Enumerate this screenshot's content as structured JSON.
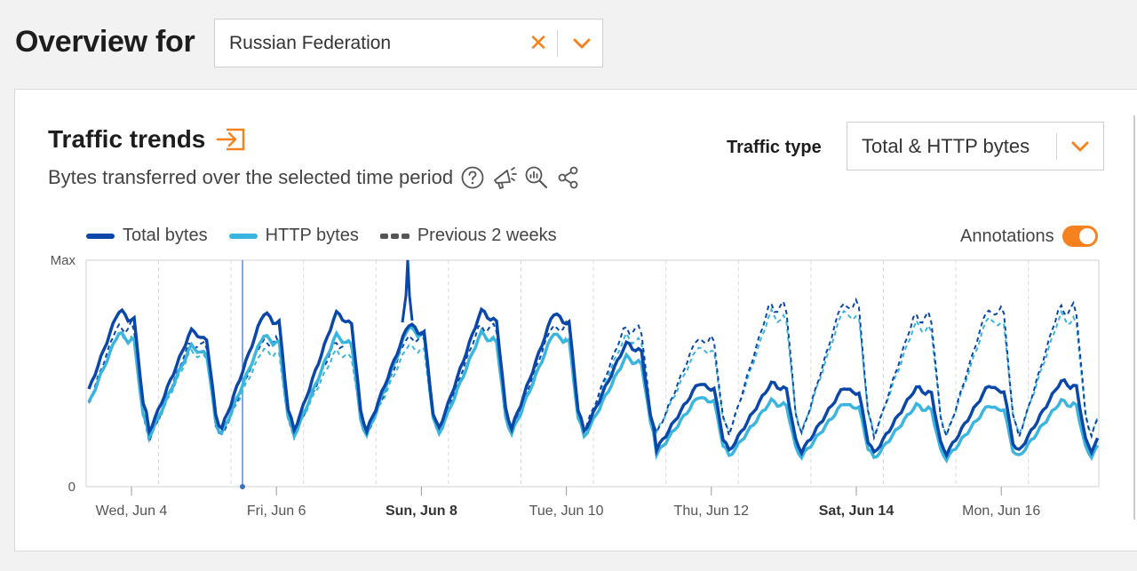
{
  "header": {
    "title": "Overview for",
    "location_value": "Russian Federation",
    "clear_glyph": "✕"
  },
  "card": {
    "title": "Traffic trends",
    "subtitle": "Bytes transferred over the selected time period",
    "traffic_type_label": "Traffic type",
    "traffic_type_value": "Total & HTTP bytes",
    "annotations_label": "Annotations",
    "annotations_on": true
  },
  "icons": [
    "expand-icon",
    "help-icon",
    "megaphone-icon",
    "zoom-chart-icon",
    "share-icon",
    "chevron-down-icon",
    "close-icon"
  ],
  "colors": {
    "accent": "#f6821f",
    "total": "#0a47a8",
    "http": "#3ab5dd",
    "previous": "#555555"
  },
  "chart_data": {
    "type": "line",
    "ylabel_top": "Max",
    "ylabel_bottom": "0",
    "x_ticks": [
      {
        "label": "Wed, Jun 4",
        "bold": false
      },
      {
        "label": "Fri, Jun 6",
        "bold": false
      },
      {
        "label": "Sun, Jun 8",
        "bold": true
      },
      {
        "label": "Tue, Jun 10",
        "bold": false
      },
      {
        "label": "Thu, Jun 12",
        "bold": false
      },
      {
        "label": "Sat, Jun 14",
        "bold": true
      },
      {
        "label": "Mon, Jun 16",
        "bold": false
      }
    ],
    "series": [
      {
        "name": "Total bytes",
        "daily_peak": [
          0.8,
          0.71,
          0.79,
          0.79,
          0.74,
          0.8,
          0.79,
          0.65,
          0.47,
          0.47,
          0.45,
          0.45,
          0.46,
          0.48,
          0.52
        ],
        "daily_low": [
          0.26,
          0.22,
          0.23,
          0.22,
          0.22,
          0.23,
          0.23,
          0.22,
          0.15,
          0.14,
          0.14,
          0.13,
          0.13,
          0.14,
          0.14
        ]
      },
      {
        "name": "HTTP bytes",
        "daily_peak": [
          0.7,
          0.64,
          0.69,
          0.69,
          0.73,
          0.7,
          0.7,
          0.59,
          0.41,
          0.39,
          0.38,
          0.37,
          0.37,
          0.39,
          0.44
        ],
        "daily_low": [
          0.22,
          0.2,
          0.21,
          0.2,
          0.2,
          0.21,
          0.21,
          0.2,
          0.13,
          0.12,
          0.12,
          0.11,
          0.11,
          0.12,
          0.12
        ]
      },
      {
        "name": "Previous 2 weeks",
        "daily_peak": [
          0.7,
          0.62,
          0.63,
          0.62,
          0.65,
          0.7,
          0.7,
          0.69,
          0.64,
          0.8,
          0.81,
          0.75,
          0.78,
          0.79,
          0.78
        ],
        "daily_low": [
          0.2,
          0.18,
          0.2,
          0.2,
          0.2,
          0.22,
          0.22,
          0.22,
          0.21,
          0.2,
          0.2,
          0.19,
          0.19,
          0.19,
          0.19
        ]
      }
    ],
    "grid": true,
    "legend": "top-left"
  }
}
